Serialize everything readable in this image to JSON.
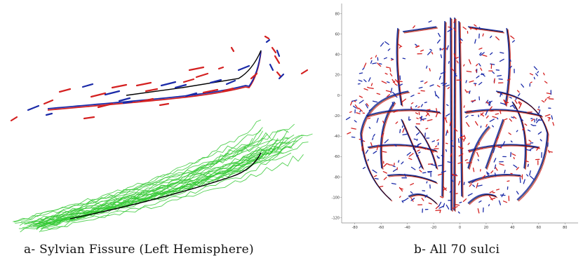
{
  "figure": {
    "panel_a": {
      "caption": "a- Sylvian Fissure (Left Hemisphere)",
      "colors": {
        "mean_curve": "#000000",
        "red_segments": "#d42020",
        "blue_segments": "#1a2aa8",
        "green_curves": "#34c934"
      }
    },
    "panel_b": {
      "caption": "b- All 70 sulci",
      "x_ticks": [
        "-80",
        "-60",
        "-40",
        "-20",
        "0",
        "20",
        "40",
        "60",
        "80"
      ],
      "y_ticks": [
        "80",
        "60",
        "40",
        "20",
        "0",
        "-20",
        "-40",
        "-60",
        "-80",
        "-100",
        "-120"
      ],
      "colors": {
        "red": "#d42020",
        "blue": "#1a2aa8",
        "black": "#000000"
      }
    }
  }
}
